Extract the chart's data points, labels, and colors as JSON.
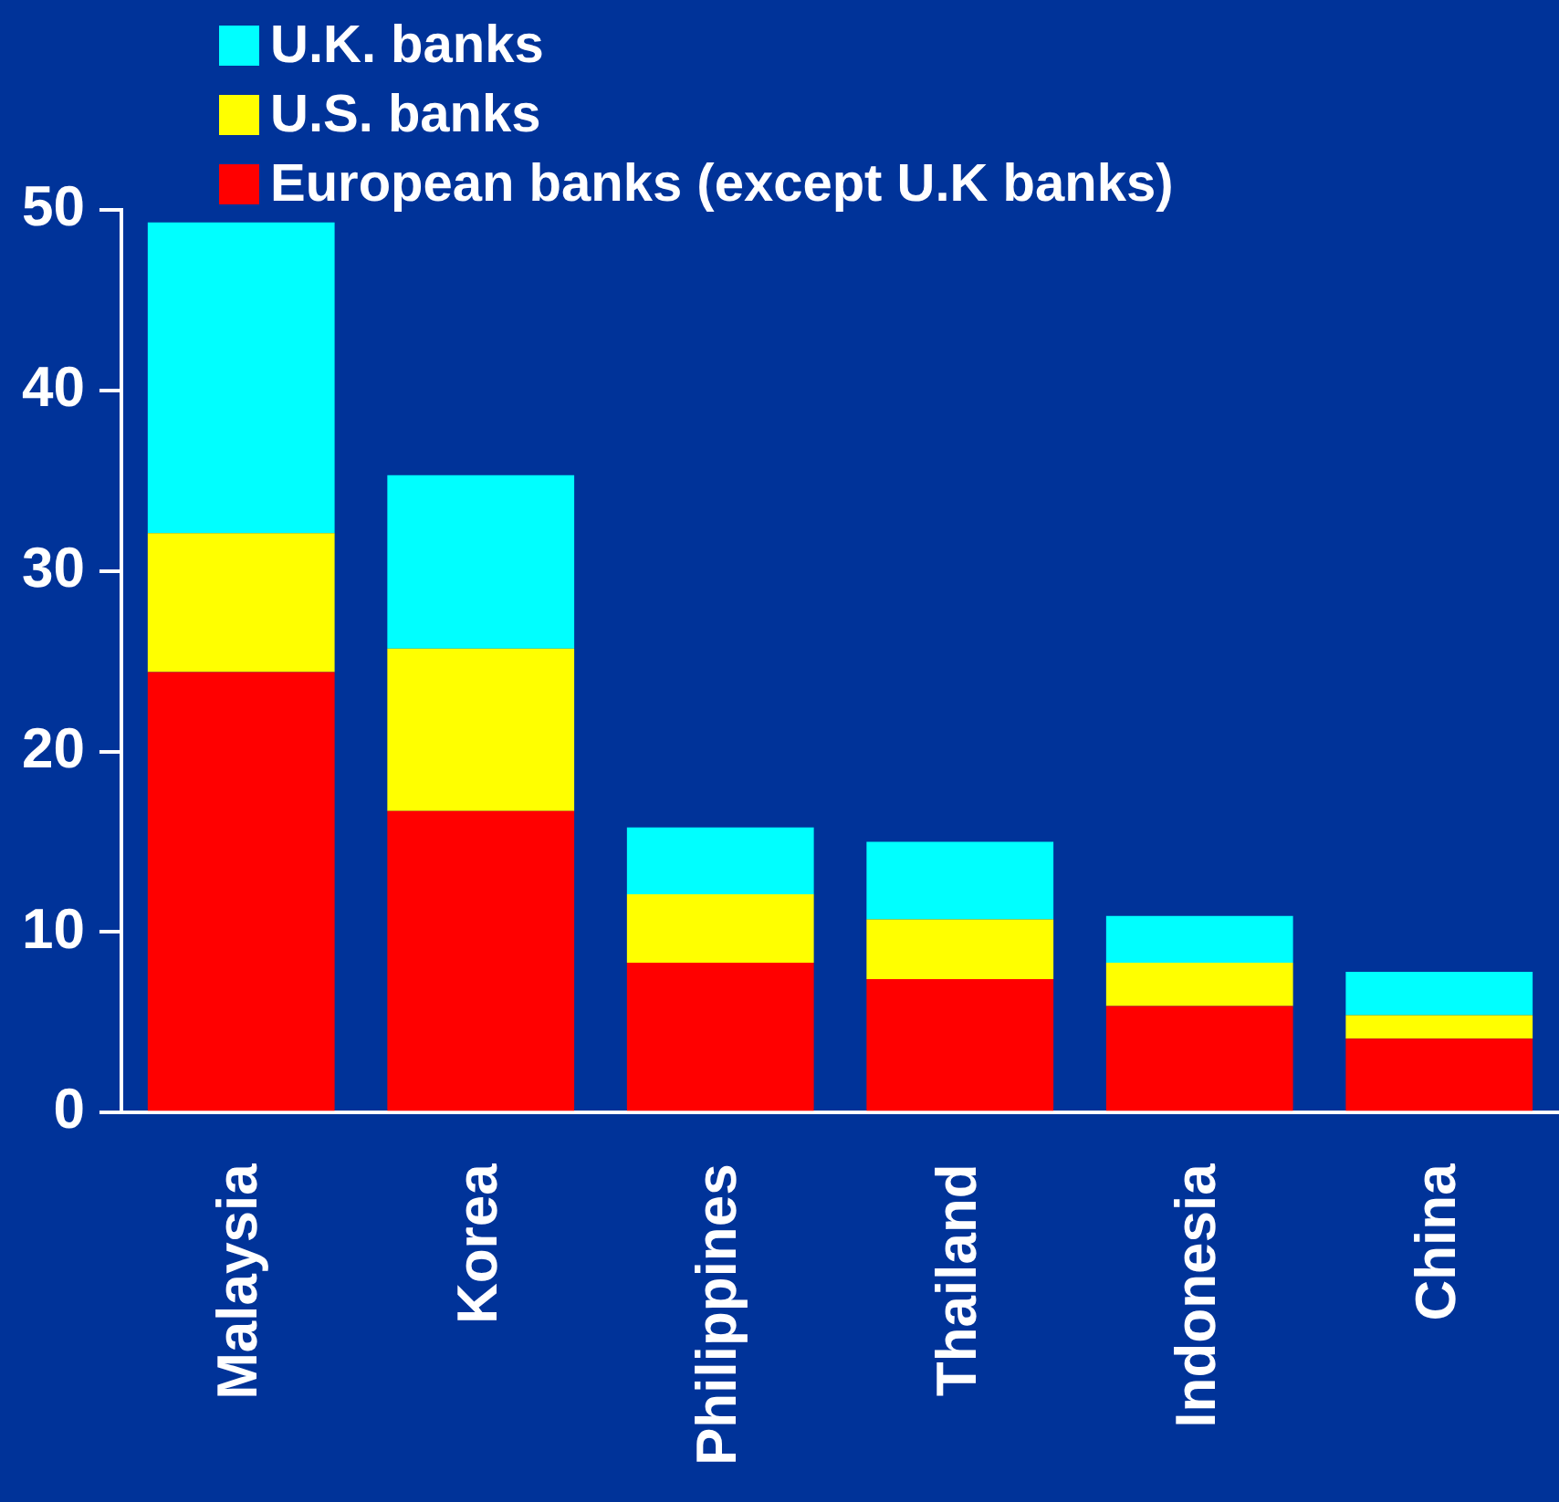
{
  "chart_data": {
    "type": "bar",
    "stacked": true,
    "categories": [
      "Malaysia",
      "Korea",
      "Philippines",
      "Thailand",
      "Indonesia",
      "China"
    ],
    "series": [
      {
        "name": "European banks (except U.K banks)",
        "color": "#ff0000",
        "values": [
          24.4,
          16.7,
          8.3,
          7.4,
          5.9,
          4.1
        ]
      },
      {
        "name": "U.S. banks",
        "color": "#ffff00",
        "values": [
          7.7,
          9.0,
          3.8,
          3.3,
          2.4,
          1.3
        ]
      },
      {
        "name": "U.K. banks",
        "color": "#00ffff",
        "values": [
          17.2,
          9.6,
          3.7,
          4.3,
          2.6,
          2.4
        ]
      }
    ],
    "ylim": [
      0,
      50
    ],
    "yticks": [
      0,
      10,
      20,
      30,
      40,
      50
    ],
    "grid": false,
    "legend": "top left"
  }
}
